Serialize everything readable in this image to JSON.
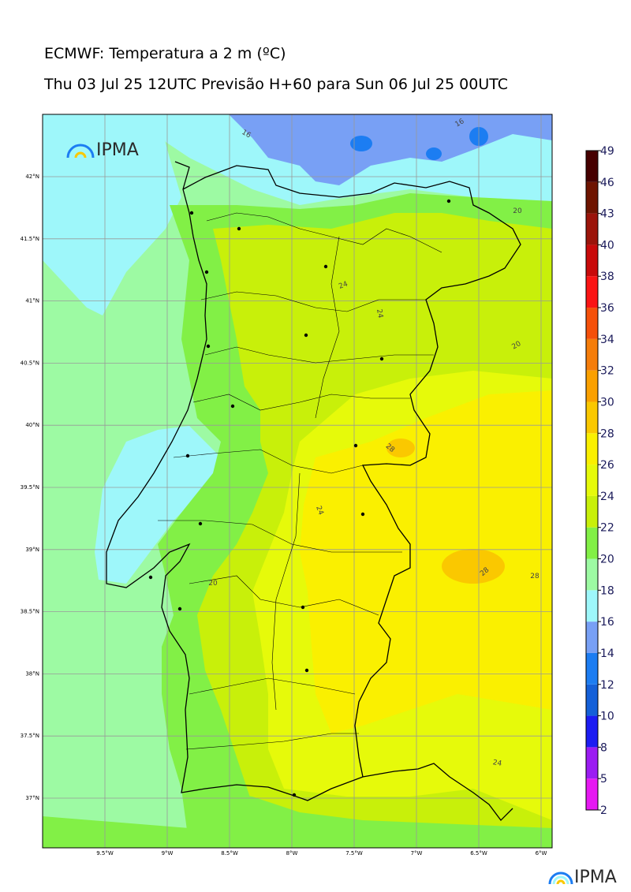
{
  "header": {
    "title": "ECMWF: Temperatura a 2 m (ºC)",
    "subtitle": "Thu 03 Jul 25 12UTC Previsão H+60 para Sun 06 Jul 25 00UTC"
  },
  "logo": {
    "text": "IPMA"
  },
  "map": {
    "lon_range": [
      -10.0,
      -5.9
    ],
    "lat_range": [
      36.6,
      42.5
    ],
    "lon_ticks": [
      "9.5°W",
      "9°W",
      "8.5°W",
      "8°W",
      "7.5°W",
      "7°W",
      "6.5°W",
      "6°W"
    ],
    "lat_ticks": [
      "42°N",
      "41.5°N",
      "41°N",
      "40.5°N",
      "40°N",
      "39.5°N",
      "39°N",
      "38.5°N",
      "38°N",
      "37.5°N",
      "37°N"
    ],
    "contour_labels": [
      "16",
      "16",
      "20",
      "24",
      "24",
      "20",
      "28",
      "24",
      "28",
      "28",
      "20",
      "24"
    ]
  },
  "colorbar": {
    "levels": [
      "2",
      "5",
      "8",
      "10",
      "12",
      "14",
      "16",
      "18",
      "20",
      "22",
      "24",
      "26",
      "28",
      "30",
      "32",
      "34",
      "36",
      "38",
      "40",
      "43",
      "46",
      "49"
    ],
    "colors": [
      "#e619f2",
      "#9b1cf2",
      "#1c1cf2",
      "#1460d8",
      "#1c7df2",
      "#78a0f5",
      "#9ef7fa",
      "#9dfaa3",
      "#82f046",
      "#c8f00a",
      "#e6fa0a",
      "#faf000",
      "#fac800",
      "#faa000",
      "#f57d0a",
      "#f5500a",
      "#fa1414",
      "#c80a0a",
      "#9b140a",
      "#6e1400",
      "#460000"
    ]
  }
}
